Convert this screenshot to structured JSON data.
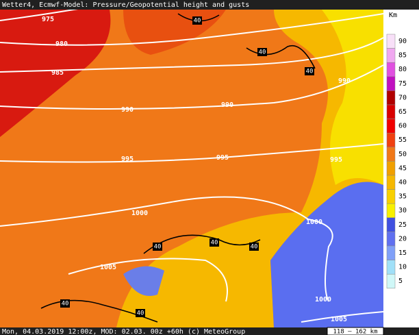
{
  "header": {
    "title": "Wetter4, Ecmwf-Model: Pressure/Geopotential height and gusts"
  },
  "footer": {
    "text": "Mon, 04.03.2019 12:00z, MOD: 02.03. 00z +60h (c) MeteoGroup",
    "scale": "118 – 162 km"
  },
  "legend": {
    "unit": "Km",
    "values": [
      90,
      85,
      80,
      75,
      70,
      65,
      60,
      55,
      50,
      45,
      40,
      35,
      30,
      25,
      20,
      15,
      10,
      5
    ]
  },
  "isobar_labels": [
    "975",
    "980",
    "985",
    "990",
    "990",
    "990",
    "995",
    "995",
    "995",
    "1000",
    "1000",
    "1000",
    "1005",
    "1005"
  ],
  "contour_labels": [
    "40",
    "40",
    "40",
    "40",
    "40",
    "40",
    "40",
    "40"
  ]
}
